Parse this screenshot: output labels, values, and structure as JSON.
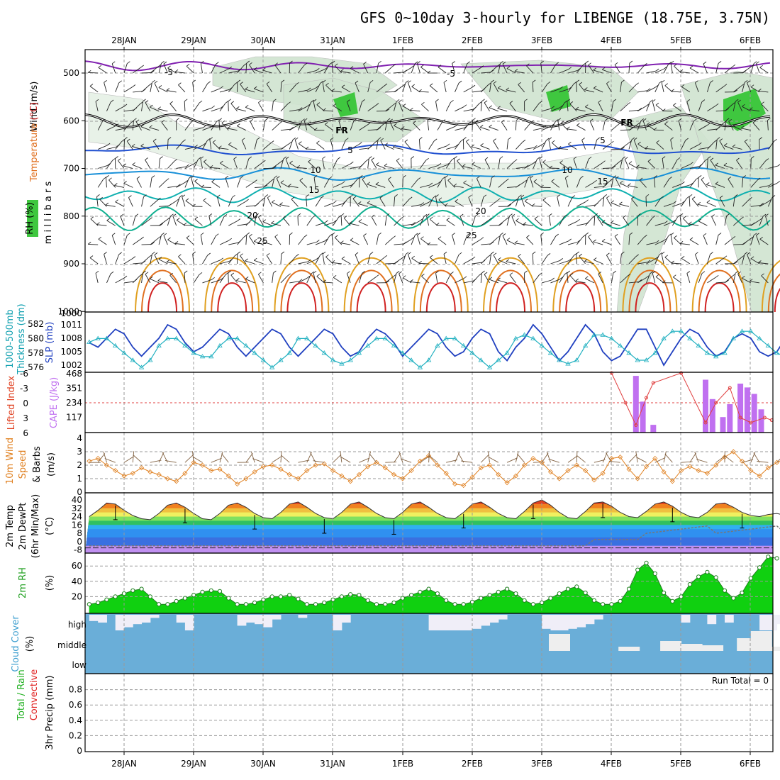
{
  "chart_data": {
    "type": "meteogram",
    "title": "GFS 0~10day 3-hourly for LIBENGE (18.75E, 3.75N)",
    "dates": [
      "28JAN",
      "29JAN",
      "30JAN",
      "31JAN",
      "1FEB",
      "2FEB",
      "3FEB",
      "4FEB",
      "5FEB",
      "6FEB"
    ],
    "panels": [
      {
        "id": "upper",
        "labels": [
          {
            "text": "Wind",
            "color": "#000000"
          },
          {
            "text": "(m/s)",
            "color": "#000000"
          },
          {
            "text": "Temperature",
            "color": "#e07020"
          },
          {
            "text": "(°C)",
            "color": "#d02020"
          },
          {
            "text": "m i l l i b a r s",
            "color": "#000000"
          },
          {
            "text": "RH",
            "color": "#000000"
          },
          {
            "text": "(%)",
            "color": "#000000"
          }
        ],
        "yticks": [
          "500",
          "600",
          "700",
          "800",
          "900",
          "1000"
        ],
        "contour_labels": [
          {
            "text": "-5",
            "color": "#8020b0"
          },
          {
            "text": "-5",
            "color": "#8020b0"
          },
          {
            "text": "FR",
            "color": "#000000"
          },
          {
            "text": "FR",
            "color": "#000000"
          },
          {
            "text": "5",
            "color": "#2050d0"
          },
          {
            "text": "5",
            "color": "#2050d0"
          },
          {
            "text": "10",
            "color": "#1890d8"
          },
          {
            "text": "10",
            "color": "#1890d8"
          },
          {
            "text": "15",
            "color": "#10b0b0"
          },
          {
            "text": "15",
            "color": "#10b0b0"
          },
          {
            "text": "20",
            "color": "#10b090"
          },
          {
            "text": "20",
            "color": "#10b090"
          },
          {
            "text": "25",
            "color": "#e0a020"
          },
          {
            "text": "25",
            "color": "#e0a020"
          }
        ]
      },
      {
        "id": "pressure",
        "labels": [
          {
            "text": "1000-500mb",
            "color": "#10a0b0"
          },
          {
            "text": "Thickness (dm)",
            "color": "#10a0b0"
          },
          {
            "text": "SLP (mb)",
            "color": "#2040c0"
          }
        ],
        "yticks_left": [
          "582",
          "580",
          "578",
          "576"
        ],
        "yticks_right": [
          "1011",
          "1008",
          "1005",
          "1002"
        ],
        "slp": [
          1007,
          1006,
          1008,
          1010,
          1009,
          1006,
          1004,
          1006,
          1008,
          1011,
          1010,
          1007,
          1005,
          1006,
          1008,
          1010,
          1009,
          1006,
          1004,
          1006,
          1008,
          1010,
          1009,
          1006,
          1004,
          1006,
          1008,
          1010,
          1009,
          1006,
          1004,
          1005,
          1008,
          1010,
          1009,
          1007,
          1004,
          1006,
          1008,
          1010,
          1009,
          1006,
          1004,
          1005,
          1008,
          1010,
          1009,
          1005,
          1003,
          1006,
          1008,
          1011,
          1009,
          1006,
          1003,
          1005,
          1008,
          1011,
          1009,
          1005,
          1003,
          1004,
          1007,
          1010,
          1010,
          1006,
          1002,
          1005,
          1008,
          1010,
          1009,
          1006,
          1004,
          1005,
          1008,
          1009,
          1008,
          1005,
          1004,
          1005,
          1008
        ],
        "thickness": [
          579.5,
          580,
          580,
          579,
          578,
          577,
          576,
          577,
          579,
          580,
          580,
          579,
          578,
          577.5,
          577.5,
          579,
          580,
          580,
          579,
          578,
          577,
          576,
          577,
          578,
          580,
          580,
          579,
          578,
          577,
          576.5,
          577,
          578,
          579,
          580,
          580,
          579,
          578,
          577,
          576,
          577,
          579,
          580,
          580,
          579,
          578,
          577,
          576,
          577,
          578,
          580,
          580.5,
          580,
          579,
          578,
          577,
          576.5,
          577,
          579,
          580.5,
          580.5,
          580,
          579,
          578,
          577,
          577,
          578,
          580,
          581,
          581,
          580,
          579,
          578,
          577.5,
          578,
          580,
          581,
          581,
          580,
          579,
          578,
          577.5
        ]
      },
      {
        "id": "instability",
        "labels": [
          {
            "text": "Lifted Index",
            "color": "#e04020"
          },
          {
            "text": "CAPE (J/kg)",
            "color": "#c070f0"
          }
        ],
        "yticks_left": [
          "-6",
          "-3",
          "0",
          "3",
          "6"
        ],
        "yticks_right": [
          "468",
          "351",
          "234",
          "117"
        ],
        "cape_bars": [
          {
            "day": 7.35,
            "v": 440
          },
          {
            "day": 7.45,
            "v": 240
          },
          {
            "day": 7.6,
            "v": 60
          },
          {
            "day": 8.35,
            "v": 410
          },
          {
            "day": 8.45,
            "v": 260
          },
          {
            "day": 8.6,
            "v": 120
          },
          {
            "day": 8.7,
            "v": 220
          },
          {
            "day": 8.85,
            "v": 380
          },
          {
            "day": 8.95,
            "v": 350
          },
          {
            "day": 9.05,
            "v": 300
          },
          {
            "day": 9.15,
            "v": 180
          }
        ]
      },
      {
        "id": "wind10m",
        "labels": [
          {
            "text": "10m Wind",
            "color": "#e08020"
          },
          {
            "text": "Speed",
            "color": "#e08020"
          },
          {
            "text": "& Barbs",
            "color": "#000000"
          },
          {
            "text": "(m/s)",
            "color": "#000000"
          }
        ],
        "yticks": [
          "4",
          "3",
          "2",
          "1",
          "0"
        ],
        "speed": [
          2.3,
          2.5,
          2.0,
          1.6,
          1.2,
          1.4,
          1.8,
          1.5,
          1.3,
          1.0,
          0.8,
          1.4,
          2.2,
          2.0,
          1.6,
          1.7,
          1.2,
          0.6,
          1.0,
          1.5,
          1.9,
          2.0,
          1.7,
          1.3,
          1.0,
          1.6,
          2.0,
          2.1,
          1.6,
          1.2,
          0.8,
          1.3,
          1.9,
          2.2,
          1.8,
          1.3,
          1.0,
          1.6,
          2.3,
          2.7,
          2.0,
          1.4,
          0.6,
          0.5,
          1.1,
          1.8,
          2.0,
          1.3,
          0.7,
          1.2,
          2.0,
          2.5,
          2.2,
          1.5,
          1.0,
          1.6,
          2.0,
          1.6,
          0.9,
          1.4,
          2.5,
          2.6,
          1.7,
          1.0,
          1.9,
          2.5,
          1.5,
          0.8,
          1.6,
          1.9,
          1.6,
          1.4,
          2.0,
          2.6,
          3.0,
          2.3,
          1.6,
          1.2,
          1.8,
          2.2,
          2.5
        ]
      },
      {
        "id": "temp2m",
        "labels": [
          {
            "text": "2m Temp",
            "color": "#000000"
          },
          {
            "text": "2m DewPt",
            "color": "#000000"
          },
          {
            "text": "(6hr Min/Max)",
            "color": "#000000"
          },
          {
            "text": "(°C)",
            "color": "#000000"
          }
        ],
        "yticks": [
          "40",
          "32",
          "24",
          "16",
          "8",
          "0",
          "-8"
        ],
        "temp": [
          24,
          30,
          37,
          36,
          30,
          25,
          22,
          21,
          27,
          35,
          37,
          33,
          27,
          22,
          21,
          27,
          35,
          37,
          33,
          27,
          23,
          22,
          28,
          36,
          38,
          33,
          27,
          23,
          22,
          28,
          36,
          38,
          33,
          27,
          23,
          22,
          28,
          36,
          38,
          33,
          27,
          23,
          22,
          28,
          36,
          38,
          33,
          27,
          23,
          22,
          29,
          37,
          40,
          35,
          28,
          23,
          22,
          29,
          37,
          38,
          34,
          28,
          24,
          23,
          29,
          36,
          38,
          34,
          28,
          24,
          23,
          28,
          36,
          37,
          33,
          28,
          25,
          24,
          26,
          27,
          25
        ]
      },
      {
        "id": "rh2m",
        "labels": [
          {
            "text": "2m RH",
            "color": "#20a020"
          },
          {
            "text": "(%)",
            "color": "#000000"
          }
        ],
        "yticks": [
          "60",
          "40",
          "20"
        ],
        "rh": [
          10,
          12,
          16,
          20,
          24,
          28,
          30,
          20,
          10,
          10,
          14,
          18,
          22,
          26,
          28,
          27,
          18,
          10,
          10,
          12,
          16,
          20,
          20,
          22,
          17,
          10,
          10,
          12,
          16,
          20,
          23,
          22,
          15,
          10,
          10,
          12,
          18,
          22,
          26,
          30,
          24,
          15,
          10,
          10,
          13,
          18,
          22,
          26,
          30,
          24,
          15,
          10,
          12,
          18,
          24,
          30,
          33,
          25,
          15,
          10,
          10,
          14,
          30,
          55,
          64,
          50,
          25,
          14,
          20,
          36,
          46,
          52,
          45,
          28,
          18,
          25,
          44,
          58,
          72,
          70
        ]
      },
      {
        "id": "cloud",
        "labels": [
          {
            "text": "Cloud Cover",
            "color": "#40a0d0"
          },
          {
            "text": "(%)",
            "color": "#000000"
          }
        ],
        "levels": [
          "high",
          "middle",
          "low"
        ]
      },
      {
        "id": "precip",
        "labels": [
          {
            "text": "Total / Rain",
            "color": "#20b020"
          },
          {
            "text": "Convective",
            "color": "#e02020"
          },
          {
            "text": "3hr Precip (mm)",
            "color": "#000000"
          }
        ],
        "yticks": [
          "0.8",
          "0.6",
          "0.4",
          "0.2",
          "0"
        ],
        "annotation": "Run Total = 0",
        "values": []
      }
    ]
  }
}
